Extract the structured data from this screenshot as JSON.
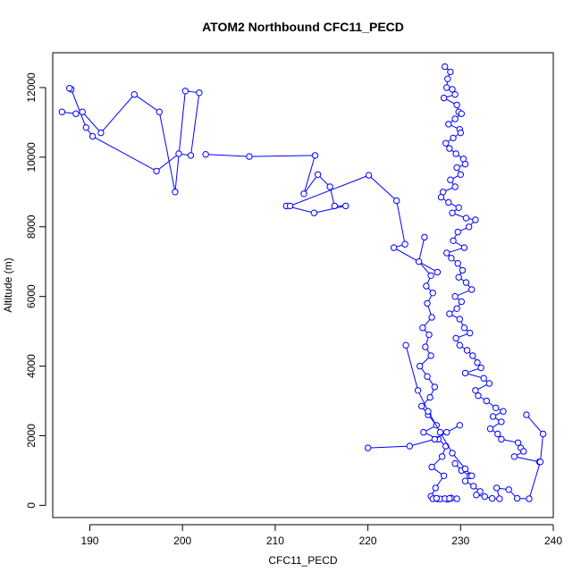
{
  "chart_data": {
    "type": "line",
    "title": "ATOM2 Northbound CFC11_PECD",
    "xlabel": "CFC11_PECD",
    "ylabel": "Altitude (m)",
    "xlim": [
      186,
      240
    ],
    "ylim": [
      -350,
      13000
    ],
    "x_ticks": [
      190,
      200,
      210,
      220,
      230,
      240
    ],
    "y_ticks": [
      0,
      2000,
      4000,
      6000,
      8000,
      10000,
      12000
    ],
    "grid": false,
    "series_color": "#0000ff",
    "marker": "open-circle",
    "series": [
      {
        "x": [
          228.3,
          228.9,
          228.6,
          228.5,
          229.1,
          229.4,
          228.2,
          229.6,
          229.8,
          230.1,
          229.4,
          228.7,
          229.9,
          230.0,
          229.2,
          228.4,
          228.8,
          229.5,
          230.3,
          230.5,
          229.6,
          230.0,
          228.9,
          229.4,
          228.1,
          227.9,
          228.7,
          229.8,
          229.1,
          230.6,
          231.6,
          230.9,
          229.7,
          229.2,
          230.4,
          228.5,
          229.0,
          229.7,
          230.2,
          229.8,
          230.6,
          231.2,
          229.4,
          230.1,
          229.6,
          228.8,
          229.9,
          230.4,
          231.0,
          229.5,
          229.9,
          230.7,
          231.3,
          231.8,
          232.2,
          230.5,
          232.5,
          233.1,
          231.6,
          231.9,
          232.8,
          233.8,
          234.6,
          233.5,
          234.4,
          233.2,
          234.0,
          234.4,
          236.2,
          236.5,
          236.8,
          235.8,
          238.5
        ],
        "y": [
          12600,
          12450,
          12250,
          12000,
          11950,
          11800,
          11700,
          11500,
          11300,
          11250,
          11100,
          10950,
          10800,
          10700,
          10550,
          10400,
          10250,
          10100,
          9950,
          9800,
          9700,
          9500,
          9350,
          9150,
          9000,
          8850,
          8700,
          8550,
          8400,
          8250,
          8200,
          8000,
          7850,
          7600,
          7400,
          7250,
          7100,
          6950,
          6750,
          6550,
          6400,
          6200,
          6000,
          5850,
          5650,
          5500,
          5350,
          5100,
          4950,
          4800,
          4600,
          4450,
          4300,
          4100,
          3950,
          3800,
          3650,
          3500,
          3300,
          3150,
          3000,
          2800,
          2700,
          2550,
          2400,
          2200,
          2050,
          1900,
          1800,
          1650,
          1550,
          1400,
          1250
        ]
      },
      {
        "x": [
          187.0,
          188.5,
          189.2,
          191.2,
          194.8,
          197.5,
          199.2,
          200.3,
          201.8,
          200.9,
          199.6,
          197.2,
          190.3,
          189.6,
          188.0,
          187.8
        ],
        "y": [
          11300,
          11250,
          11300,
          10700,
          11800,
          11300,
          9000,
          11900,
          11850,
          10050,
          10100,
          9600,
          10600,
          10850,
          11950,
          11980
        ]
      },
      {
        "x": [
          202.5,
          207.2,
          214.3,
          213.1,
          214.6,
          215.9,
          216.4,
          217.6,
          214.2,
          211.2,
          211.6,
          220.1,
          223.1,
          224.0,
          222.8,
          227.5
        ],
        "y": [
          10080,
          10020,
          10050,
          8950,
          9500,
          9150,
          8600,
          8600,
          8400,
          8600,
          8600,
          9480,
          8750,
          7500,
          7400,
          6700
        ]
      },
      {
        "x": [
          226.1,
          225.5,
          226.8,
          226.3,
          227.0,
          226.4,
          226.9,
          225.9,
          226.6,
          226.2,
          226.8,
          225.6,
          226.4,
          227.2,
          226.7,
          225.8,
          226.5,
          227.4,
          226.0,
          227.6,
          228.4,
          228.0,
          226.9,
          228.2,
          227.3,
          226.8,
          227.5,
          228.6,
          227.0,
          228.9,
          227.8,
          228.3,
          229.0,
          229.6,
          227.4,
          228.8
        ],
        "y": [
          7700,
          7000,
          6600,
          6300,
          6100,
          5800,
          5400,
          5100,
          4900,
          4550,
          4300,
          4000,
          3700,
          3400,
          3100,
          2850,
          2600,
          2300,
          2100,
          1900,
          1700,
          1400,
          1100,
          850,
          500,
          260,
          190,
          175,
          190,
          200,
          185,
          195,
          210,
          190,
          205,
          200
        ]
      },
      {
        "x": [
          229.4,
          230.1,
          231.0,
          230.5,
          231.4,
          232.1,
          231.7,
          232.6,
          233.4,
          234.2,
          233.9,
          235.2,
          236.1,
          237.4,
          238.6,
          238.9,
          237.1
        ],
        "y": [
          1200,
          1000,
          850,
          700,
          550,
          400,
          300,
          250,
          200,
          190,
          500,
          450,
          200,
          190,
          1250,
          2050,
          2600
        ]
      },
      {
        "x": [
          220.0,
          224.5,
          227.2,
          228.5,
          229.9
        ],
        "y": [
          1650,
          1700,
          1900,
          2100,
          2300
        ]
      },
      {
        "x": [
          224.1,
          225.4,
          226.5,
          227.8,
          229.1,
          230.5,
          231.2
        ],
        "y": [
          4600,
          3300,
          2700,
          2100,
          1500,
          1050,
          850
        ]
      }
    ]
  }
}
